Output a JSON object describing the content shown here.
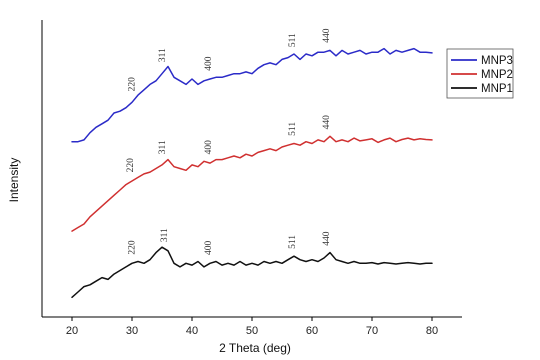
{
  "chart_data": {
    "type": "line",
    "xlabel": "2 Theta (deg)",
    "ylabel": "Intensity",
    "xlim": [
      15,
      85
    ],
    "xticks": [
      20,
      30,
      40,
      50,
      60,
      70,
      80
    ],
    "grid": false,
    "legend_position": "top-right",
    "y_scale": "arbitrary units, stacked offset traces",
    "series": [
      {
        "name": "MNP3",
        "color": "#2b2bc8",
        "x": [
          20,
          21,
          22,
          23,
          24,
          25,
          26,
          27,
          28,
          29,
          30,
          31,
          32,
          33,
          34,
          35,
          36,
          37,
          38,
          39,
          40,
          41,
          42,
          43,
          44,
          45,
          46,
          47,
          48,
          49,
          50,
          51,
          52,
          53,
          54,
          55,
          56,
          57,
          58,
          59,
          60,
          61,
          62,
          63,
          64,
          65,
          66,
          67,
          68,
          69,
          70,
          71,
          72,
          73,
          74,
          75,
          76,
          77,
          78,
          79,
          80
        ],
        "y": [
          4.6,
          4.6,
          4.65,
          4.85,
          5.0,
          5.1,
          5.2,
          5.4,
          5.45,
          5.55,
          5.7,
          5.9,
          6.05,
          6.2,
          6.3,
          6.5,
          6.7,
          6.4,
          6.3,
          6.2,
          6.35,
          6.2,
          6.3,
          6.35,
          6.4,
          6.4,
          6.45,
          6.5,
          6.5,
          6.55,
          6.5,
          6.65,
          6.75,
          6.8,
          6.75,
          6.9,
          6.95,
          7.05,
          6.9,
          7.05,
          7.0,
          7.1,
          7.1,
          7.15,
          7.0,
          7.15,
          7.05,
          7.1,
          7.15,
          7.05,
          7.1,
          7.1,
          7.2,
          7.05,
          7.15,
          7.1,
          7.15,
          7.2,
          7.1,
          7.1,
          7.08
        ]
      },
      {
        "name": "MNP2",
        "color": "#d03030",
        "x": [
          20,
          21,
          22,
          23,
          24,
          25,
          26,
          27,
          28,
          29,
          30,
          31,
          32,
          33,
          34,
          35,
          36,
          37,
          38,
          39,
          40,
          41,
          42,
          43,
          44,
          45,
          46,
          47,
          48,
          49,
          50,
          51,
          52,
          53,
          54,
          55,
          56,
          57,
          58,
          59,
          60,
          61,
          62,
          63,
          64,
          65,
          66,
          67,
          68,
          69,
          70,
          71,
          72,
          73,
          74,
          75,
          76,
          77,
          78,
          79,
          80
        ],
        "y": [
          2.1,
          2.2,
          2.3,
          2.5,
          2.65,
          2.8,
          2.95,
          3.1,
          3.25,
          3.4,
          3.5,
          3.6,
          3.7,
          3.75,
          3.85,
          3.95,
          4.1,
          3.9,
          3.85,
          3.8,
          3.95,
          3.9,
          4.05,
          4.0,
          4.1,
          4.1,
          4.15,
          4.2,
          4.15,
          4.25,
          4.2,
          4.3,
          4.35,
          4.4,
          4.35,
          4.45,
          4.5,
          4.55,
          4.5,
          4.6,
          4.55,
          4.65,
          4.6,
          4.75,
          4.6,
          4.65,
          4.6,
          4.7,
          4.62,
          4.65,
          4.68,
          4.58,
          4.65,
          4.7,
          4.6,
          4.66,
          4.7,
          4.65,
          4.68,
          4.66,
          4.65
        ]
      },
      {
        "name": "MNP1",
        "color": "#111111",
        "x": [
          20,
          21,
          22,
          23,
          24,
          25,
          26,
          27,
          28,
          29,
          30,
          31,
          32,
          33,
          34,
          35,
          36,
          37,
          38,
          39,
          40,
          41,
          42,
          43,
          44,
          45,
          46,
          47,
          48,
          49,
          50,
          51,
          52,
          53,
          54,
          55,
          56,
          57,
          58,
          59,
          60,
          61,
          62,
          63,
          64,
          65,
          66,
          67,
          68,
          69,
          70,
          71,
          72,
          73,
          74,
          75,
          76,
          77,
          78,
          79,
          80
        ],
        "y": [
          0.25,
          0.4,
          0.55,
          0.6,
          0.7,
          0.8,
          0.75,
          0.9,
          1.0,
          1.1,
          1.2,
          1.25,
          1.2,
          1.3,
          1.5,
          1.65,
          1.55,
          1.2,
          1.1,
          1.2,
          1.15,
          1.25,
          1.1,
          1.2,
          1.25,
          1.15,
          1.2,
          1.15,
          1.25,
          1.15,
          1.2,
          1.15,
          1.25,
          1.2,
          1.25,
          1.2,
          1.3,
          1.4,
          1.3,
          1.25,
          1.3,
          1.25,
          1.35,
          1.5,
          1.3,
          1.25,
          1.2,
          1.25,
          1.2,
          1.2,
          1.22,
          1.18,
          1.22,
          1.2,
          1.18,
          1.2,
          1.22,
          1.2,
          1.18,
          1.2,
          1.2
        ]
      }
    ],
    "peak_annotations": [
      {
        "series": "MNP3",
        "label": "220",
        "x": 30.4
      },
      {
        "series": "MNP3",
        "label": "311",
        "x": 35.5
      },
      {
        "series": "MNP3",
        "label": "400",
        "x": 43.2
      },
      {
        "series": "MNP3",
        "label": "511",
        "x": 57.2
      },
      {
        "series": "MNP3",
        "label": "440",
        "x": 62.8
      },
      {
        "series": "MNP2",
        "label": "220",
        "x": 30.2
      },
      {
        "series": "MNP2",
        "label": "311",
        "x": 35.5
      },
      {
        "series": "MNP2",
        "label": "400",
        "x": 43.2
      },
      {
        "series": "MNP2",
        "label": "511",
        "x": 57.2
      },
      {
        "series": "MNP2",
        "label": "440",
        "x": 62.8
      },
      {
        "series": "MNP1",
        "label": "220",
        "x": 30.4
      },
      {
        "series": "MNP1",
        "label": "311",
        "x": 35.8
      },
      {
        "series": "MNP1",
        "label": "400",
        "x": 43.2
      },
      {
        "series": "MNP1",
        "label": "511",
        "x": 57.2
      },
      {
        "series": "MNP1",
        "label": "440",
        "x": 62.8
      }
    ],
    "legend": [
      "MNP3",
      "MNP2",
      "MNP1"
    ]
  }
}
